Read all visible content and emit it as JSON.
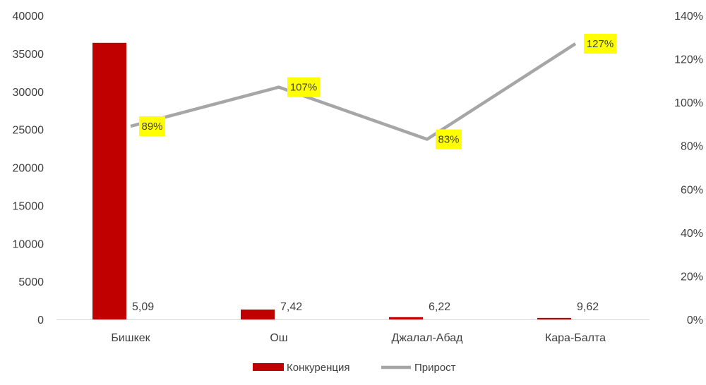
{
  "chart_data": {
    "type": "bar",
    "categories": [
      "Бишкек",
      "Ош",
      "Джалал-Абад",
      "Кара-Балта"
    ],
    "series": [
      {
        "name": "Конкуренция",
        "type": "bar",
        "axis": "left",
        "values": [
          36400,
          1300,
          300,
          200
        ],
        "data_labels": [
          "5,09",
          "7,42",
          "6,22",
          "9,62"
        ],
        "color": "#c00000"
      },
      {
        "name": "Прирост",
        "type": "line",
        "axis": "right",
        "values": [
          89,
          107,
          83,
          127
        ],
        "data_labels": [
          "89%",
          "107%",
          "83%",
          "127%"
        ],
        "color": "#a6a6a6",
        "label_bg": "#ffff00"
      }
    ],
    "y_left": {
      "ylim": [
        0,
        40000
      ],
      "ticks": [
        "0",
        "5000",
        "10000",
        "15000",
        "20000",
        "25000",
        "30000",
        "35000",
        "40000"
      ]
    },
    "y_right": {
      "ylim": [
        0,
        140
      ],
      "ticks": [
        "0%",
        "20%",
        "40%",
        "60%",
        "80%",
        "100%",
        "120%",
        "140%"
      ]
    },
    "grid": false,
    "legend": "bottom"
  }
}
